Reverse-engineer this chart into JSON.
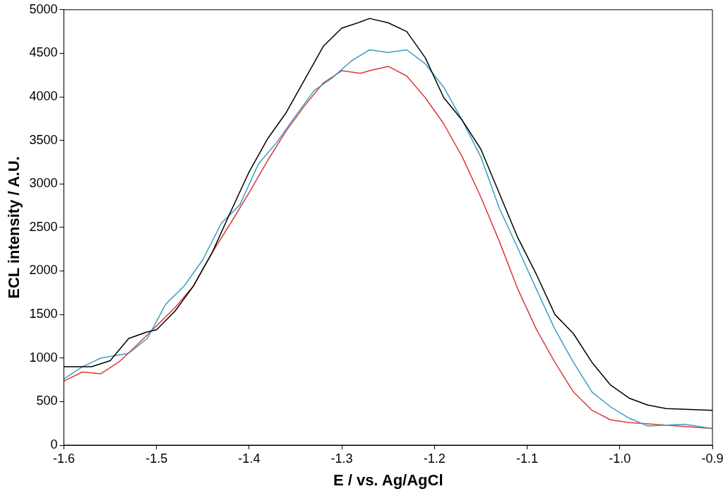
{
  "chart_data": {
    "type": "line",
    "xlabel": "E / vs. Ag/AgCl",
    "ylabel": "ECL intensity / A.U.",
    "grid": false,
    "legend": false,
    "marker": "none",
    "line_style": "solid",
    "xlim": [
      -1.6,
      -0.9
    ],
    "xticks": [
      -1.6,
      -1.5,
      -1.4,
      -1.3,
      -1.2,
      -1.1,
      {
        "value": -1.0,
        "label": "-1.0"
      },
      -0.9
    ],
    "ylim": [
      0,
      5000
    ],
    "yticks": [
      0,
      500,
      1000,
      1500,
      2000,
      2500,
      3000,
      3500,
      4000,
      4500,
      5000
    ],
    "series": [
      {
        "color": "#000000",
        "x": [
          -1.6,
          -1.57,
          -1.55,
          -1.53,
          -1.51,
          -1.5,
          -1.48,
          -1.46,
          -1.44,
          -1.42,
          -1.4,
          -1.38,
          -1.36,
          -1.34,
          -1.32,
          -1.3,
          -1.28,
          -1.27,
          -1.25,
          -1.23,
          -1.21,
          -1.19,
          -1.17,
          -1.15,
          -1.13,
          -1.11,
          -1.09,
          -1.07,
          -1.05,
          -1.03,
          -1.01,
          -0.99,
          -0.97,
          -0.95,
          -0.9
        ],
        "values": [
          900,
          900,
          970,
          1225,
          1300,
          1325,
          1540,
          1830,
          2210,
          2680,
          3140,
          3520,
          3820,
          4200,
          4580,
          4790,
          4860,
          4900,
          4850,
          4750,
          4450,
          3990,
          3730,
          3400,
          2890,
          2380,
          1960,
          1500,
          1280,
          950,
          690,
          540,
          460,
          420,
          400
        ]
      },
      {
        "color": "#3a9dc8",
        "x": [
          -1.6,
          -1.58,
          -1.56,
          -1.53,
          -1.51,
          -1.49,
          -1.47,
          -1.45,
          -1.43,
          -1.41,
          -1.39,
          -1.37,
          -1.35,
          -1.33,
          -1.31,
          -1.29,
          -1.27,
          -1.25,
          -1.23,
          -1.21,
          -1.19,
          -1.17,
          -1.15,
          -1.13,
          -1.11,
          -1.09,
          -1.07,
          -1.05,
          -1.03,
          -1.01,
          -0.99,
          -0.97,
          -0.93,
          -0.9
        ],
        "values": [
          760,
          900,
          1000,
          1055,
          1225,
          1620,
          1830,
          2130,
          2550,
          2760,
          3230,
          3480,
          3780,
          4070,
          4220,
          4410,
          4540,
          4510,
          4540,
          4380,
          4110,
          3730,
          3310,
          2720,
          2260,
          1790,
          1330,
          950,
          610,
          440,
          310,
          220,
          240,
          190
        ]
      },
      {
        "color": "#d9393b",
        "x": [
          -1.6,
          -1.58,
          -1.56,
          -1.54,
          -1.52,
          -1.5,
          -1.48,
          -1.46,
          -1.44,
          -1.42,
          -1.4,
          -1.38,
          -1.36,
          -1.34,
          -1.32,
          -1.3,
          -1.28,
          -1.27,
          -1.25,
          -1.23,
          -1.21,
          -1.19,
          -1.17,
          -1.15,
          -1.13,
          -1.11,
          -1.09,
          -1.07,
          -1.05,
          -1.03,
          -1.01,
          -0.99,
          -0.95,
          -0.9
        ],
        "values": [
          735,
          840,
          820,
          960,
          1160,
          1370,
          1580,
          1830,
          2210,
          2550,
          2900,
          3270,
          3610,
          3900,
          4160,
          4300,
          4270,
          4300,
          4350,
          4240,
          3990,
          3690,
          3310,
          2850,
          2340,
          1790,
          1330,
          950,
          610,
          400,
          290,
          260,
          230,
          190
        ]
      }
    ]
  }
}
